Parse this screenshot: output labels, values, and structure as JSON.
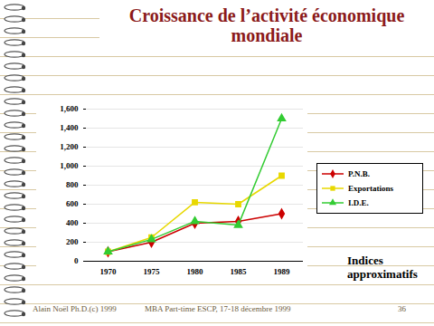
{
  "chart_data": {
    "type": "line",
    "title": "Croissance de l’activité économique mondiale",
    "categories": [
      "1970",
      "1975",
      "1980",
      "1985",
      "1989"
    ],
    "series": [
      {
        "name": "P.N.B.",
        "color": "#cc0000",
        "marker": "diamond",
        "values": [
          100,
          200,
          400,
          420,
          500
        ]
      },
      {
        "name": "Exportations",
        "color": "#e8d800",
        "marker": "square",
        "values": [
          100,
          250,
          620,
          600,
          900
        ]
      },
      {
        "name": "I.D.E.",
        "color": "#33cc33",
        "marker": "triangle",
        "values": [
          100,
          230,
          420,
          380,
          1500
        ]
      }
    ],
    "ylim": [
      0,
      1600
    ],
    "yticks": [
      0,
      200,
      400,
      600,
      800,
      1000,
      1200,
      1400,
      1600
    ],
    "grid": true,
    "legend": "right",
    "annotations": [
      "Indices approximatifs"
    ]
  },
  "footer": {
    "author": "Alain Noël Ph.D.(c) 1999",
    "course": "MBA Part-time ESCP, 17-18 décembre 1999",
    "page": "36"
  }
}
